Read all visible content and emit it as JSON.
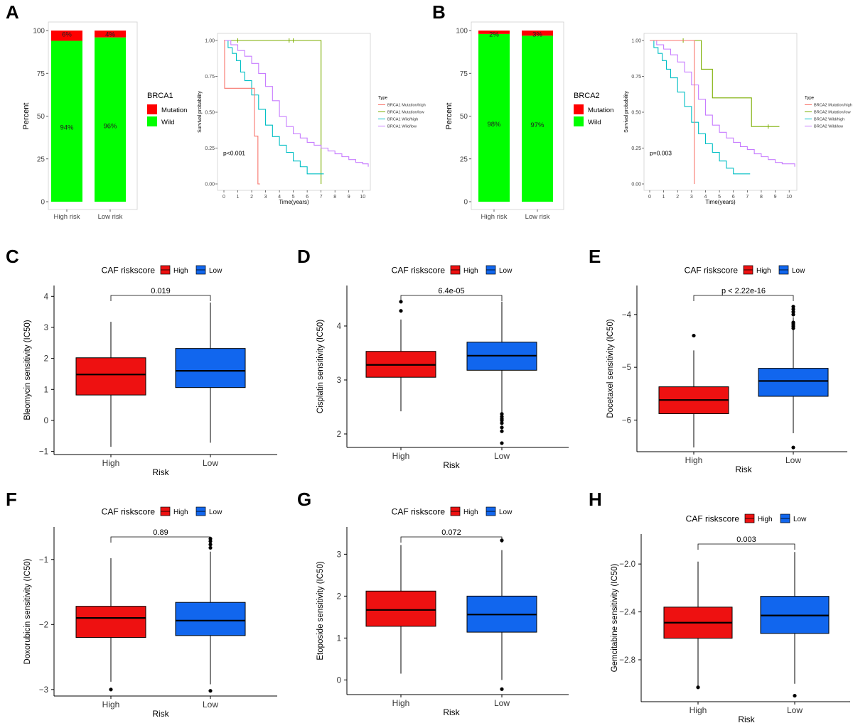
{
  "panel_letters": [
    "A",
    "B",
    "C",
    "D",
    "E",
    "F",
    "G",
    "H"
  ],
  "chart_data": [
    {
      "id": "A-bar",
      "panel": "A",
      "type": "bar",
      "stacked": true,
      "categories": [
        "High risk",
        "Low risk"
      ],
      "series": [
        {
          "name": "Wild",
          "values": [
            94,
            96
          ]
        },
        {
          "name": "Mutation",
          "values": [
            6,
            4
          ]
        }
      ],
      "value_labels": {
        "Wild": [
          "94%",
          "96%"
        ],
        "Mutation": [
          "6%",
          "4%"
        ]
      },
      "ylabel": "Percent",
      "ylim": [
        0,
        100
      ],
      "yticks": [
        0,
        25,
        50,
        75,
        100
      ],
      "legend": {
        "title": "BRCA1",
        "entries": [
          "Mutation",
          "Wild"
        ],
        "colors": [
          "#FF0000",
          "#00FF00"
        ],
        "placement": "right"
      }
    },
    {
      "id": "A-km",
      "panel": "A",
      "type": "line",
      "xlabel": "Time(years)",
      "ylabel": "Survival probability",
      "xlim": [
        0,
        10.5
      ],
      "ylim": [
        0,
        1
      ],
      "xticks": [
        0,
        1,
        2,
        3,
        4,
        5,
        6,
        7,
        8,
        9,
        10
      ],
      "yticks": [
        "0.00",
        "0.25",
        "0.50",
        "0.75",
        "1.00"
      ],
      "annotation": "p<0.001",
      "legend": {
        "title": "Type",
        "placement": "right"
      },
      "series": [
        {
          "name": "BRCA1 Mutation/high",
          "color": "#F8766D",
          "x": [
            0,
            0.05,
            2.2,
            2.45,
            2.6
          ],
          "y": [
            1,
            0.667,
            0.333,
            0,
            0
          ]
        },
        {
          "name": "BRCA1 Mutation/low",
          "color": "#7CAE00",
          "x": [
            0,
            7.0,
            7.0
          ],
          "y": [
            1,
            1,
            0
          ],
          "censors": [
            1.0,
            4.7,
            5.0
          ]
        },
        {
          "name": "BRCA1 Wild/high",
          "color": "#00BFC4",
          "x": [
            0,
            0.3,
            0.6,
            0.9,
            1.2,
            1.5,
            2.0,
            2.5,
            3.0,
            3.5,
            4.0,
            4.5,
            5.0,
            5.5,
            6.0,
            7.2
          ],
          "y": [
            1,
            0.95,
            0.91,
            0.86,
            0.78,
            0.72,
            0.62,
            0.52,
            0.41,
            0.33,
            0.27,
            0.22,
            0.16,
            0.12,
            0.07,
            0.07
          ]
        },
        {
          "name": "BRCA1 Wild/low",
          "color": "#C77CFF",
          "x": [
            0,
            0.5,
            1.0,
            1.5,
            2.0,
            2.5,
            3.0,
            3.5,
            4.0,
            4.5,
            5.0,
            5.5,
            6.0,
            6.5,
            7.0,
            7.5,
            8.0,
            8.5,
            9.0,
            9.5,
            10.0,
            10.4
          ],
          "y": [
            1,
            0.97,
            0.93,
            0.89,
            0.84,
            0.77,
            0.68,
            0.58,
            0.47,
            0.4,
            0.35,
            0.32,
            0.29,
            0.27,
            0.25,
            0.23,
            0.21,
            0.19,
            0.17,
            0.15,
            0.14,
            0.12
          ]
        }
      ]
    },
    {
      "id": "B-bar",
      "panel": "B",
      "type": "bar",
      "stacked": true,
      "categories": [
        "High risk",
        "Low risk"
      ],
      "series": [
        {
          "name": "Wild",
          "values": [
            98,
            97
          ]
        },
        {
          "name": "Mutation",
          "values": [
            2,
            3
          ]
        }
      ],
      "value_labels": {
        "Wild": [
          "98%",
          "97%"
        ],
        "Mutation": [
          "2%",
          "3%"
        ]
      },
      "ylabel": "Percent",
      "ylim": [
        0,
        100
      ],
      "yticks": [
        0,
        25,
        50,
        75,
        100
      ],
      "legend": {
        "title": "BRCA2",
        "entries": [
          "Mutation",
          "Wild"
        ],
        "colors": [
          "#FF0000",
          "#00FF00"
        ],
        "placement": "right"
      }
    },
    {
      "id": "B-km",
      "panel": "B",
      "type": "line",
      "xlabel": "Time(years)",
      "ylabel": "Survival probability",
      "xlim": [
        0,
        10.5
      ],
      "ylim": [
        0,
        1
      ],
      "xticks": [
        0,
        1,
        2,
        3,
        4,
        5,
        6,
        7,
        8,
        9,
        10
      ],
      "yticks": [
        "0.00",
        "0.25",
        "0.50",
        "0.75",
        "1.00"
      ],
      "annotation": "p=0.003",
      "legend": {
        "title": "Type",
        "placement": "right"
      },
      "series": [
        {
          "name": "BRCA2 Mutation/high",
          "color": "#F8766D",
          "x": [
            0,
            3.2,
            3.2
          ],
          "y": [
            1,
            1,
            0
          ]
        },
        {
          "name": "BRCA2 Mutation/low",
          "color": "#7CAE00",
          "x": [
            0,
            3.7,
            3.7,
            4.5,
            4.5,
            7.3,
            7.3,
            9.3
          ],
          "y": [
            1,
            1,
            0.8,
            0.8,
            0.6,
            0.6,
            0.4,
            0.4
          ],
          "censors": [
            2.4,
            8.5
          ]
        },
        {
          "name": "BRCA2 Wild/high",
          "color": "#00BFC4",
          "x": [
            0,
            0.3,
            0.6,
            0.9,
            1.2,
            1.5,
            2.0,
            2.5,
            3.0,
            3.5,
            4.0,
            4.5,
            5.0,
            5.5,
            6.0,
            7.2
          ],
          "y": [
            1,
            0.95,
            0.91,
            0.86,
            0.8,
            0.74,
            0.64,
            0.54,
            0.43,
            0.35,
            0.28,
            0.22,
            0.16,
            0.11,
            0.07,
            0.07
          ]
        },
        {
          "name": "BRCA2 Wild/low",
          "color": "#C77CFF",
          "x": [
            0,
            0.5,
            1.0,
            1.5,
            2.0,
            2.5,
            3.0,
            3.5,
            4.0,
            4.5,
            5.0,
            5.5,
            6.0,
            6.5,
            7.0,
            7.5,
            8.0,
            8.5,
            9.0,
            9.5,
            10.0,
            10.4
          ],
          "y": [
            1,
            0.97,
            0.94,
            0.9,
            0.85,
            0.78,
            0.69,
            0.59,
            0.48,
            0.41,
            0.36,
            0.32,
            0.29,
            0.26,
            0.24,
            0.21,
            0.19,
            0.17,
            0.15,
            0.14,
            0.14,
            0.12
          ]
        }
      ]
    },
    {
      "id": "C",
      "panel": "C",
      "type": "box",
      "legend": {
        "title": "CAF riskscore",
        "entries": [
          "High",
          "Low"
        ],
        "colors": [
          "#EE1111",
          "#1166EE"
        ],
        "placement": "top"
      },
      "categories": [
        "High",
        "Low"
      ],
      "xlabel": "Risk",
      "ylabel": "Bleomycin sensitivity (IC50)",
      "ylim": [
        -1.1,
        4.35
      ],
      "yticks": [
        -1,
        0,
        1,
        2,
        3,
        4
      ],
      "pvalue": "0.019",
      "boxes": [
        {
          "q1": 0.82,
          "median": 1.48,
          "q3": 2.02,
          "lower": -0.85,
          "upper": 3.18,
          "outliers": []
        },
        {
          "q1": 1.06,
          "median": 1.6,
          "q3": 2.32,
          "lower": -0.72,
          "upper": 3.8,
          "outliers": []
        }
      ]
    },
    {
      "id": "D",
      "panel": "D",
      "type": "box",
      "legend": {
        "title": "CAF riskscore",
        "entries": [
          "High",
          "Low"
        ],
        "colors": [
          "#EE1111",
          "#1166EE"
        ],
        "placement": "top"
      },
      "categories": [
        "High",
        "Low"
      ],
      "xlabel": "Risk",
      "ylabel": "Cisplatin sensitivity (IC50)",
      "ylim": [
        1.75,
        4.75
      ],
      "yticks": [
        2,
        3,
        4
      ],
      "pvalue": "6.4e-05",
      "boxes": [
        {
          "q1": 3.05,
          "median": 3.28,
          "q3": 3.53,
          "lower": 2.42,
          "upper": 4.12,
          "outliers": [
            4.45,
            4.28
          ]
        },
        {
          "q1": 3.18,
          "median": 3.45,
          "q3": 3.7,
          "lower": 2.4,
          "upper": 4.45,
          "outliers": [
            2.37,
            2.32,
            2.28,
            2.25,
            2.2,
            2.12,
            2.05,
            1.83
          ]
        }
      ]
    },
    {
      "id": "E",
      "panel": "E",
      "type": "box",
      "legend": {
        "title": "CAF riskscore",
        "entries": [
          "High",
          "Low"
        ],
        "colors": [
          "#EE1111",
          "#1166EE"
        ],
        "placement": "top"
      },
      "categories": [
        "High",
        "Low"
      ],
      "xlabel": "Risk",
      "ylabel": "Docetaxel sensitivity (IC50)",
      "ylim": [
        -6.6,
        -3.45
      ],
      "yticks": [
        -6,
        -5,
        -4
      ],
      "pvalue": "p < 2.22e-16",
      "boxes": [
        {
          "q1": -5.88,
          "median": -5.62,
          "q3": -5.37,
          "lower": -6.52,
          "upper": -4.68,
          "outliers": [
            -4.4
          ]
        },
        {
          "q1": -5.55,
          "median": -5.26,
          "q3": -5.02,
          "lower": -6.25,
          "upper": -4.05,
          "outliers": [
            -3.85,
            -3.9,
            -3.95,
            -4.0,
            -4.15,
            -4.18,
            -4.22,
            -4.26,
            -6.52
          ]
        }
      ]
    },
    {
      "id": "F",
      "panel": "F",
      "type": "box",
      "legend": {
        "title": "CAF riskscore",
        "entries": [
          "High",
          "Low"
        ],
        "colors": [
          "#EE1111",
          "#1166EE"
        ],
        "placement": "top"
      },
      "categories": [
        "High",
        "Low"
      ],
      "xlabel": "Risk",
      "ylabel": "Doxorubicin sensitivity (IC50)",
      "ylim": [
        -3.1,
        -0.5
      ],
      "yticks": [
        -3,
        -2,
        -1
      ],
      "pvalue": "0.89",
      "boxes": [
        {
          "q1": -2.2,
          "median": -1.9,
          "q3": -1.72,
          "lower": -2.88,
          "upper": -0.98,
          "outliers": [
            -3.0
          ]
        },
        {
          "q1": -2.17,
          "median": -1.94,
          "q3": -1.66,
          "lower": -2.92,
          "upper": -0.88,
          "outliers": [
            -0.68,
            -0.72,
            -0.77,
            -0.82,
            -3.02
          ]
        }
      ]
    },
    {
      "id": "G",
      "panel": "G",
      "type": "box",
      "legend": {
        "title": "CAF riskscore",
        "entries": [
          "High",
          "Low"
        ],
        "colors": [
          "#EE1111",
          "#1166EE"
        ],
        "placement": "top"
      },
      "categories": [
        "High",
        "Low"
      ],
      "xlabel": "Risk",
      "ylabel": "Etoposide sensitivity (IC50)",
      "ylim": [
        -0.35,
        3.65
      ],
      "yticks": [
        0,
        1,
        2,
        3
      ],
      "pvalue": "0.072",
      "boxes": [
        {
          "q1": 1.28,
          "median": 1.67,
          "q3": 2.12,
          "lower": 0.15,
          "upper": 3.22,
          "outliers": []
        },
        {
          "q1": 1.14,
          "median": 1.56,
          "q3": 2.0,
          "lower": 0.0,
          "upper": 3.1,
          "outliers": [
            3.33,
            -0.22
          ]
        }
      ]
    },
    {
      "id": "H",
      "panel": "H",
      "type": "box",
      "legend": {
        "title": "CAF riskscore",
        "entries": [
          "High",
          "Low"
        ],
        "colors": [
          "#EE1111",
          "#1166EE"
        ],
        "placement": "top"
      },
      "categories": [
        "High",
        "Low"
      ],
      "xlabel": "Risk",
      "ylabel": "Gemcitabine sensitivity (IC50)",
      "ylim": [
        -3.15,
        -1.75
      ],
      "yticks": [
        -2.8,
        -2.4,
        -2.0
      ],
      "ytick_labels": [
        "-2.8",
        "-2.4",
        "-2.0"
      ],
      "pvalue": "0.003",
      "boxes": [
        {
          "q1": -2.62,
          "median": -2.49,
          "q3": -2.36,
          "lower": -3.02,
          "upper": -1.98,
          "outliers": [
            -3.03
          ]
        },
        {
          "q1": -2.58,
          "median": -2.43,
          "q3": -2.27,
          "lower": -3.0,
          "upper": -1.9,
          "outliers": [
            -3.1
          ]
        }
      ]
    }
  ]
}
